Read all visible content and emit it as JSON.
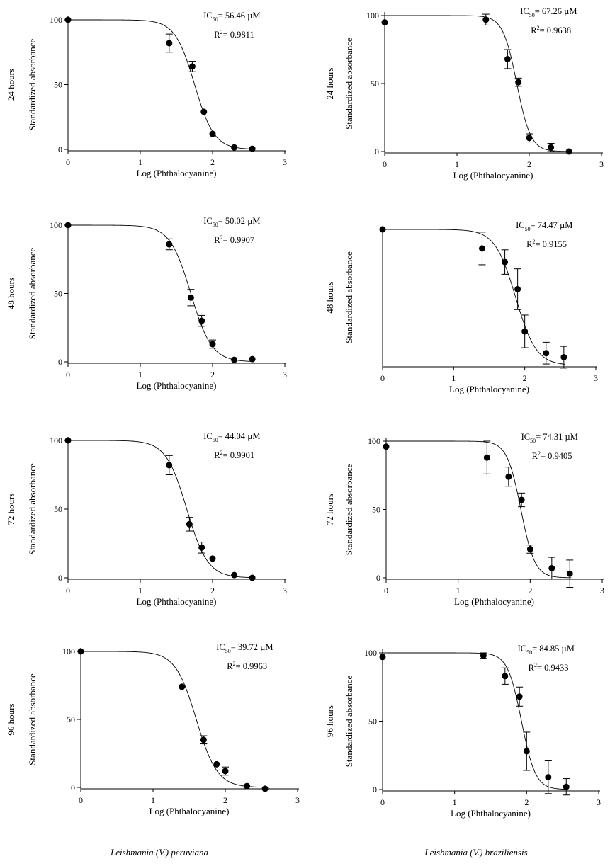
{
  "species_labels": {
    "left": "Leishmania (V.) peruviana",
    "right": "Leishmania (V.) braziliensis"
  },
  "chart_data": [
    {
      "type": "scatter",
      "row_label": "24 hours",
      "xlabel": "Log (Phthalocyanine)",
      "ylabel": "Standardized absorbance",
      "xlim": [
        0,
        3
      ],
      "ylim": [
        0,
        100
      ],
      "xticks": [
        "0",
        "1",
        "2",
        "3"
      ],
      "yticks": [
        "0",
        "50",
        "100"
      ],
      "ic50": "56.46",
      "ic50_unit": "µM",
      "r2": "0.9811",
      "x": [
        0,
        1.4,
        1.72,
        1.88,
        2.0,
        2.3,
        2.55
      ],
      "y": [
        100,
        82,
        64,
        29,
        12,
        1.5,
        0.5
      ],
      "err": [
        0,
        7,
        4,
        0,
        0,
        0,
        0
      ],
      "fit": {
        "log_ic50": 1.7518,
        "hill": 3.2
      }
    },
    {
      "type": "scatter",
      "row_label": "24 hours",
      "xlabel": "Log (Phthalocyanine)",
      "ylabel": "Standardized absorbance",
      "xlim": [
        0,
        3
      ],
      "ylim": [
        0,
        100
      ],
      "xticks": [
        "0",
        "1",
        "2",
        "3"
      ],
      "yticks": [
        "0",
        "50",
        "100"
      ],
      "ic50": "67.26",
      "ic50_unit": "µM",
      "r2": "0.9638",
      "x": [
        0,
        1.4,
        1.7,
        1.85,
        2.0,
        2.3,
        2.55
      ],
      "y": [
        95,
        97,
        68,
        51,
        10,
        3,
        0
      ],
      "err": [
        0,
        4,
        7,
        3,
        3,
        3,
        0
      ],
      "fit": {
        "log_ic50": 1.8278,
        "hill": 4.5
      }
    },
    {
      "type": "scatter",
      "row_label": "48 hours",
      "xlabel": "Log (Phthalocyanine)",
      "ylabel": "Standardized absorbance",
      "xlim": [
        0,
        3
      ],
      "ylim": [
        0,
        100
      ],
      "xticks": [
        "0",
        "1",
        "2",
        "3"
      ],
      "yticks": [
        "0",
        "50",
        "100"
      ],
      "ic50": "50.02",
      "ic50_unit": "µM",
      "r2": "0.9907",
      "x": [
        0,
        1.4,
        1.7,
        1.85,
        2.0,
        2.3,
        2.55
      ],
      "y": [
        100,
        86,
        47,
        30,
        13,
        1.5,
        2
      ],
      "err": [
        0,
        4,
        6,
        4,
        3,
        0,
        0
      ],
      "fit": {
        "log_ic50": 1.6992,
        "hill": 3.0
      }
    },
    {
      "type": "scatter",
      "row_label": "48 hours",
      "xlabel": "Log (Phthalocyanine)",
      "ylabel": "Standardized absorbance",
      "xlim": [
        0,
        3
      ],
      "ylim": [
        0,
        100
      ],
      "xticks": [
        "0",
        "1",
        "2",
        "3"
      ],
      "yticks": [],
      "ic50": "74.47",
      "ic50_unit": "µM",
      "r2": "0.9155",
      "x": [
        0,
        1.4,
        1.72,
        1.9,
        2.0,
        2.3,
        2.55
      ],
      "y": [
        100,
        86,
        76,
        56,
        25,
        9,
        6
      ],
      "err": [
        0,
        12,
        9,
        15,
        12,
        8,
        8
      ],
      "fit": {
        "log_ic50": 1.872,
        "hill": 3.0
      }
    },
    {
      "type": "scatter",
      "row_label": "72 hours",
      "xlabel": "Log (Phthalocyanine)",
      "ylabel": "Standardized absorbance",
      "xlim": [
        0,
        3
      ],
      "ylim": [
        0,
        100
      ],
      "xticks": [
        "0",
        "1",
        "2",
        "3"
      ],
      "yticks": [
        "0",
        "50",
        "100"
      ],
      "ic50": "44.04",
      "ic50_unit": "µM",
      "r2": "0.9901",
      "x": [
        0,
        1.4,
        1.68,
        1.85,
        2.0,
        2.3,
        2.55
      ],
      "y": [
        100,
        82,
        39,
        22,
        14,
        2,
        0
      ],
      "err": [
        0,
        7,
        5,
        4,
        0,
        0,
        0
      ],
      "fit": {
        "log_ic50": 1.6439,
        "hill": 3.0
      }
    },
    {
      "type": "scatter",
      "row_label": "72 hours",
      "xlabel": "Log (Phthalocyanine)",
      "ylabel": "Standardized absorbance",
      "xlim": [
        0,
        3
      ],
      "ylim": [
        0,
        100
      ],
      "xticks": [
        "0",
        "1",
        "2",
        "3"
      ],
      "yticks": [
        "0",
        "50",
        "100"
      ],
      "ic50": "74.31",
      "ic50_unit": "µM",
      "r2": "0.9405",
      "x": [
        0,
        1.4,
        1.7,
        1.88,
        2.0,
        2.3,
        2.55
      ],
      "y": [
        96,
        88,
        74,
        57,
        21,
        7,
        3
      ],
      "err": [
        0,
        12,
        7,
        5,
        3,
        8,
        10
      ],
      "fit": {
        "log_ic50": 1.871,
        "hill": 4.5
      }
    },
    {
      "type": "scatter",
      "row_label": "96 hours",
      "xlabel": "Log (Phthalocyanine)",
      "ylabel": "Standardized absorbance",
      "xlim": [
        0,
        3
      ],
      "ylim": [
        0,
        100
      ],
      "xticks": [
        "0",
        "1",
        "2",
        "3"
      ],
      "yticks": [
        "0",
        "50",
        "100"
      ],
      "ic50": "39.72",
      "ic50_unit": "µM",
      "r2": "0.9963",
      "x": [
        0,
        1.4,
        1.7,
        1.88,
        2.0,
        2.3,
        2.55
      ],
      "y": [
        100,
        74,
        35,
        17,
        12,
        1,
        -1
      ],
      "err": [
        0,
        0,
        3,
        0,
        3,
        0,
        0
      ],
      "fit": {
        "log_ic50": 1.599,
        "hill": 3.0
      }
    },
    {
      "type": "scatter",
      "row_label": "96 hours",
      "xlabel": "Log (Phthalocyanine)",
      "ylabel": "Standardized absorbance",
      "xlim": [
        0,
        3
      ],
      "ylim": [
        0,
        100
      ],
      "xticks": [
        "0",
        "1",
        "2",
        "3"
      ],
      "yticks": [
        "0",
        "50",
        "100"
      ],
      "ic50": "84.85",
      "ic50_unit": "µM",
      "r2": "0.9433",
      "x": [
        0,
        1.4,
        1.7,
        1.9,
        2.0,
        2.3,
        2.55
      ],
      "y": [
        97,
        98,
        83,
        68,
        28,
        9,
        2
      ],
      "err": [
        0,
        2,
        6,
        7,
        14,
        12,
        6
      ],
      "fit": {
        "log_ic50": 1.9287,
        "hill": 4.5
      }
    }
  ]
}
